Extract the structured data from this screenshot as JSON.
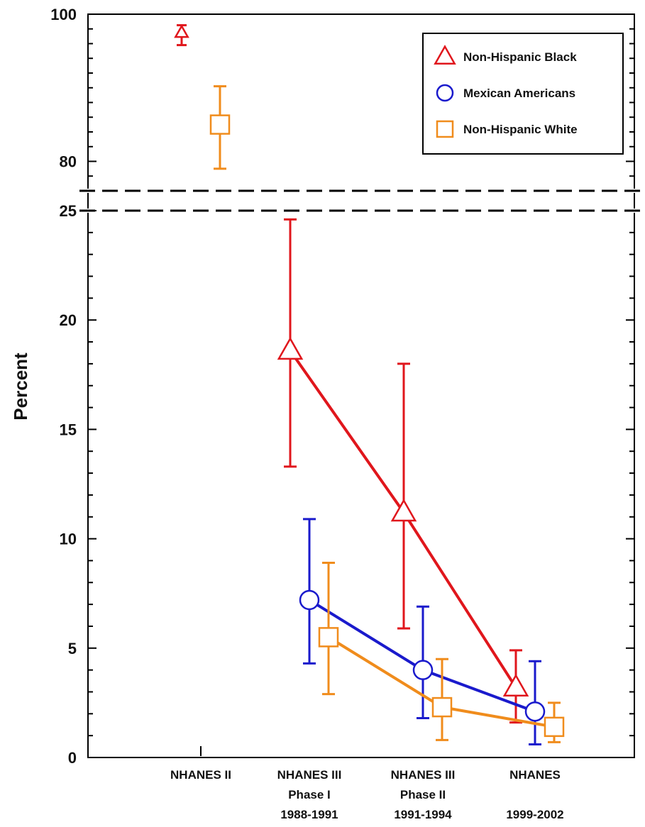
{
  "chart_data": {
    "type": "line",
    "title": "",
    "xlabel": "",
    "ylabel": "Percent",
    "categories": [
      [
        "NHANES II"
      ],
      [
        "NHANES III",
        "Phase I",
        "1988-1991"
      ],
      [
        "NHANES III",
        "Phase II",
        "1991-1994"
      ],
      [
        "NHANES",
        "",
        "1999-2002"
      ]
    ],
    "y_axis": {
      "broken": true,
      "lower_range": [
        0,
        25
      ],
      "upper_range": [
        76,
        100
      ],
      "lower_ticks": [
        0,
        5,
        10,
        15,
        20,
        25
      ],
      "upper_ticks": [
        80,
        100
      ]
    },
    "legend": {
      "placement": "top-right"
    },
    "series": [
      {
        "name": "Non-Hispanic Black",
        "color": "#e0161c",
        "marker": "triangle",
        "points": [
          {
            "x": 0,
            "y": 97.5,
            "low": 95.8,
            "high": 98.5
          },
          {
            "x": 1,
            "y": 18.6,
            "low": 13.3,
            "high": 24.6
          },
          {
            "x": 2,
            "y": 11.2,
            "low": 5.9,
            "high": 18.0
          },
          {
            "x": 3,
            "y": 3.2,
            "low": 1.6,
            "high": 4.9
          }
        ]
      },
      {
        "name": "Mexican Americans",
        "color": "#1a1acc",
        "marker": "circle",
        "points": [
          {
            "x": 1,
            "y": 7.2,
            "low": 4.3,
            "high": 10.9
          },
          {
            "x": 2,
            "y": 4.0,
            "low": 1.8,
            "high": 6.9
          },
          {
            "x": 3,
            "y": 2.1,
            "low": 0.6,
            "high": 4.4
          }
        ]
      },
      {
        "name": "Non-Hispanic White",
        "color": "#f08c1c",
        "marker": "square",
        "points": [
          {
            "x": 0,
            "y": 85.0,
            "low": 79.0,
            "high": 90.2
          },
          {
            "x": 1,
            "y": 5.5,
            "low": 2.9,
            "high": 8.9
          },
          {
            "x": 2,
            "y": 2.3,
            "low": 0.8,
            "high": 4.5
          },
          {
            "x": 3,
            "y": 1.4,
            "low": 0.7,
            "high": 2.5
          }
        ]
      }
    ]
  }
}
